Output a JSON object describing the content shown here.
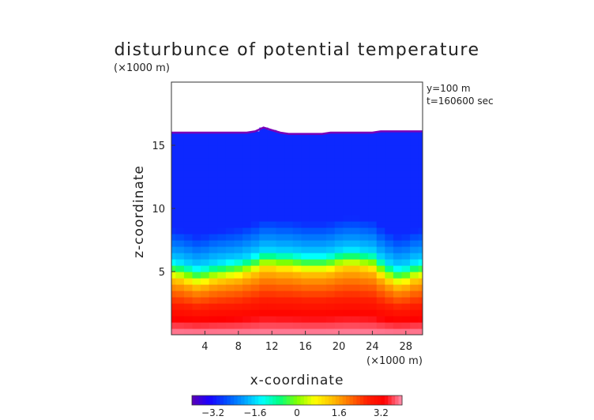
{
  "chart_data": {
    "type": "heatmap",
    "title": "disturbunce of potential temperature",
    "scale_note": "(×1000 m)",
    "x_scale_note": "(×1000 m)",
    "annotations": [
      "y=100 m",
      "t=160600 sec"
    ],
    "xlabel": "x-coordinate",
    "ylabel": "z-coordinate",
    "xlim": [
      0,
      30
    ],
    "ylim": [
      0,
      20
    ],
    "x_ticks": [
      4,
      8,
      12,
      16,
      20,
      24,
      28
    ],
    "y_ticks": [
      5,
      10,
      15
    ],
    "colorbar": {
      "ticks": [
        -3.2,
        -1.6,
        0,
        1.6,
        3.2
      ],
      "tick_labels": [
        "−3.2",
        "−1.6",
        "0",
        "1.6",
        "3.2"
      ],
      "range": [
        -4.0,
        4.0
      ],
      "colors": [
        "#5a00b4",
        "#1a00ff",
        "#0050ff",
        "#00a0ff",
        "#00ffff",
        "#00ff80",
        "#80ff00",
        "#ffff00",
        "#ffc000",
        "#ff7000",
        "#ff2000",
        "#ff0000",
        "#ff90b0"
      ]
    },
    "field": {
      "top_boundary_z": [
        16.0,
        16.0,
        16.0,
        16.0,
        16.0,
        16.0,
        16.0,
        16.0,
        16.0,
        16.0,
        16.1,
        16.4,
        16.2,
        16.0,
        15.9,
        15.9,
        15.9,
        15.9,
        15.9,
        16.0,
        16.0,
        16.0,
        16.0,
        16.0,
        16.0,
        16.1,
        16.1,
        16.1,
        16.1,
        16.1,
        16.1
      ],
      "transition_z": [
        5.0,
        4.9,
        4.7,
        4.5,
        4.6,
        4.8,
        4.9,
        5.0,
        5.1,
        5.3,
        5.5,
        5.8,
        5.8,
        5.7,
        5.7,
        5.6,
        5.5,
        5.5,
        5.5,
        5.6,
        5.8,
        5.9,
        5.9,
        5.8,
        5.7,
        5.2,
        4.8,
        4.5,
        4.6,
        4.9,
        5.0
      ],
      "upper_value": -3.0,
      "surface_value": 4.0
    }
  }
}
